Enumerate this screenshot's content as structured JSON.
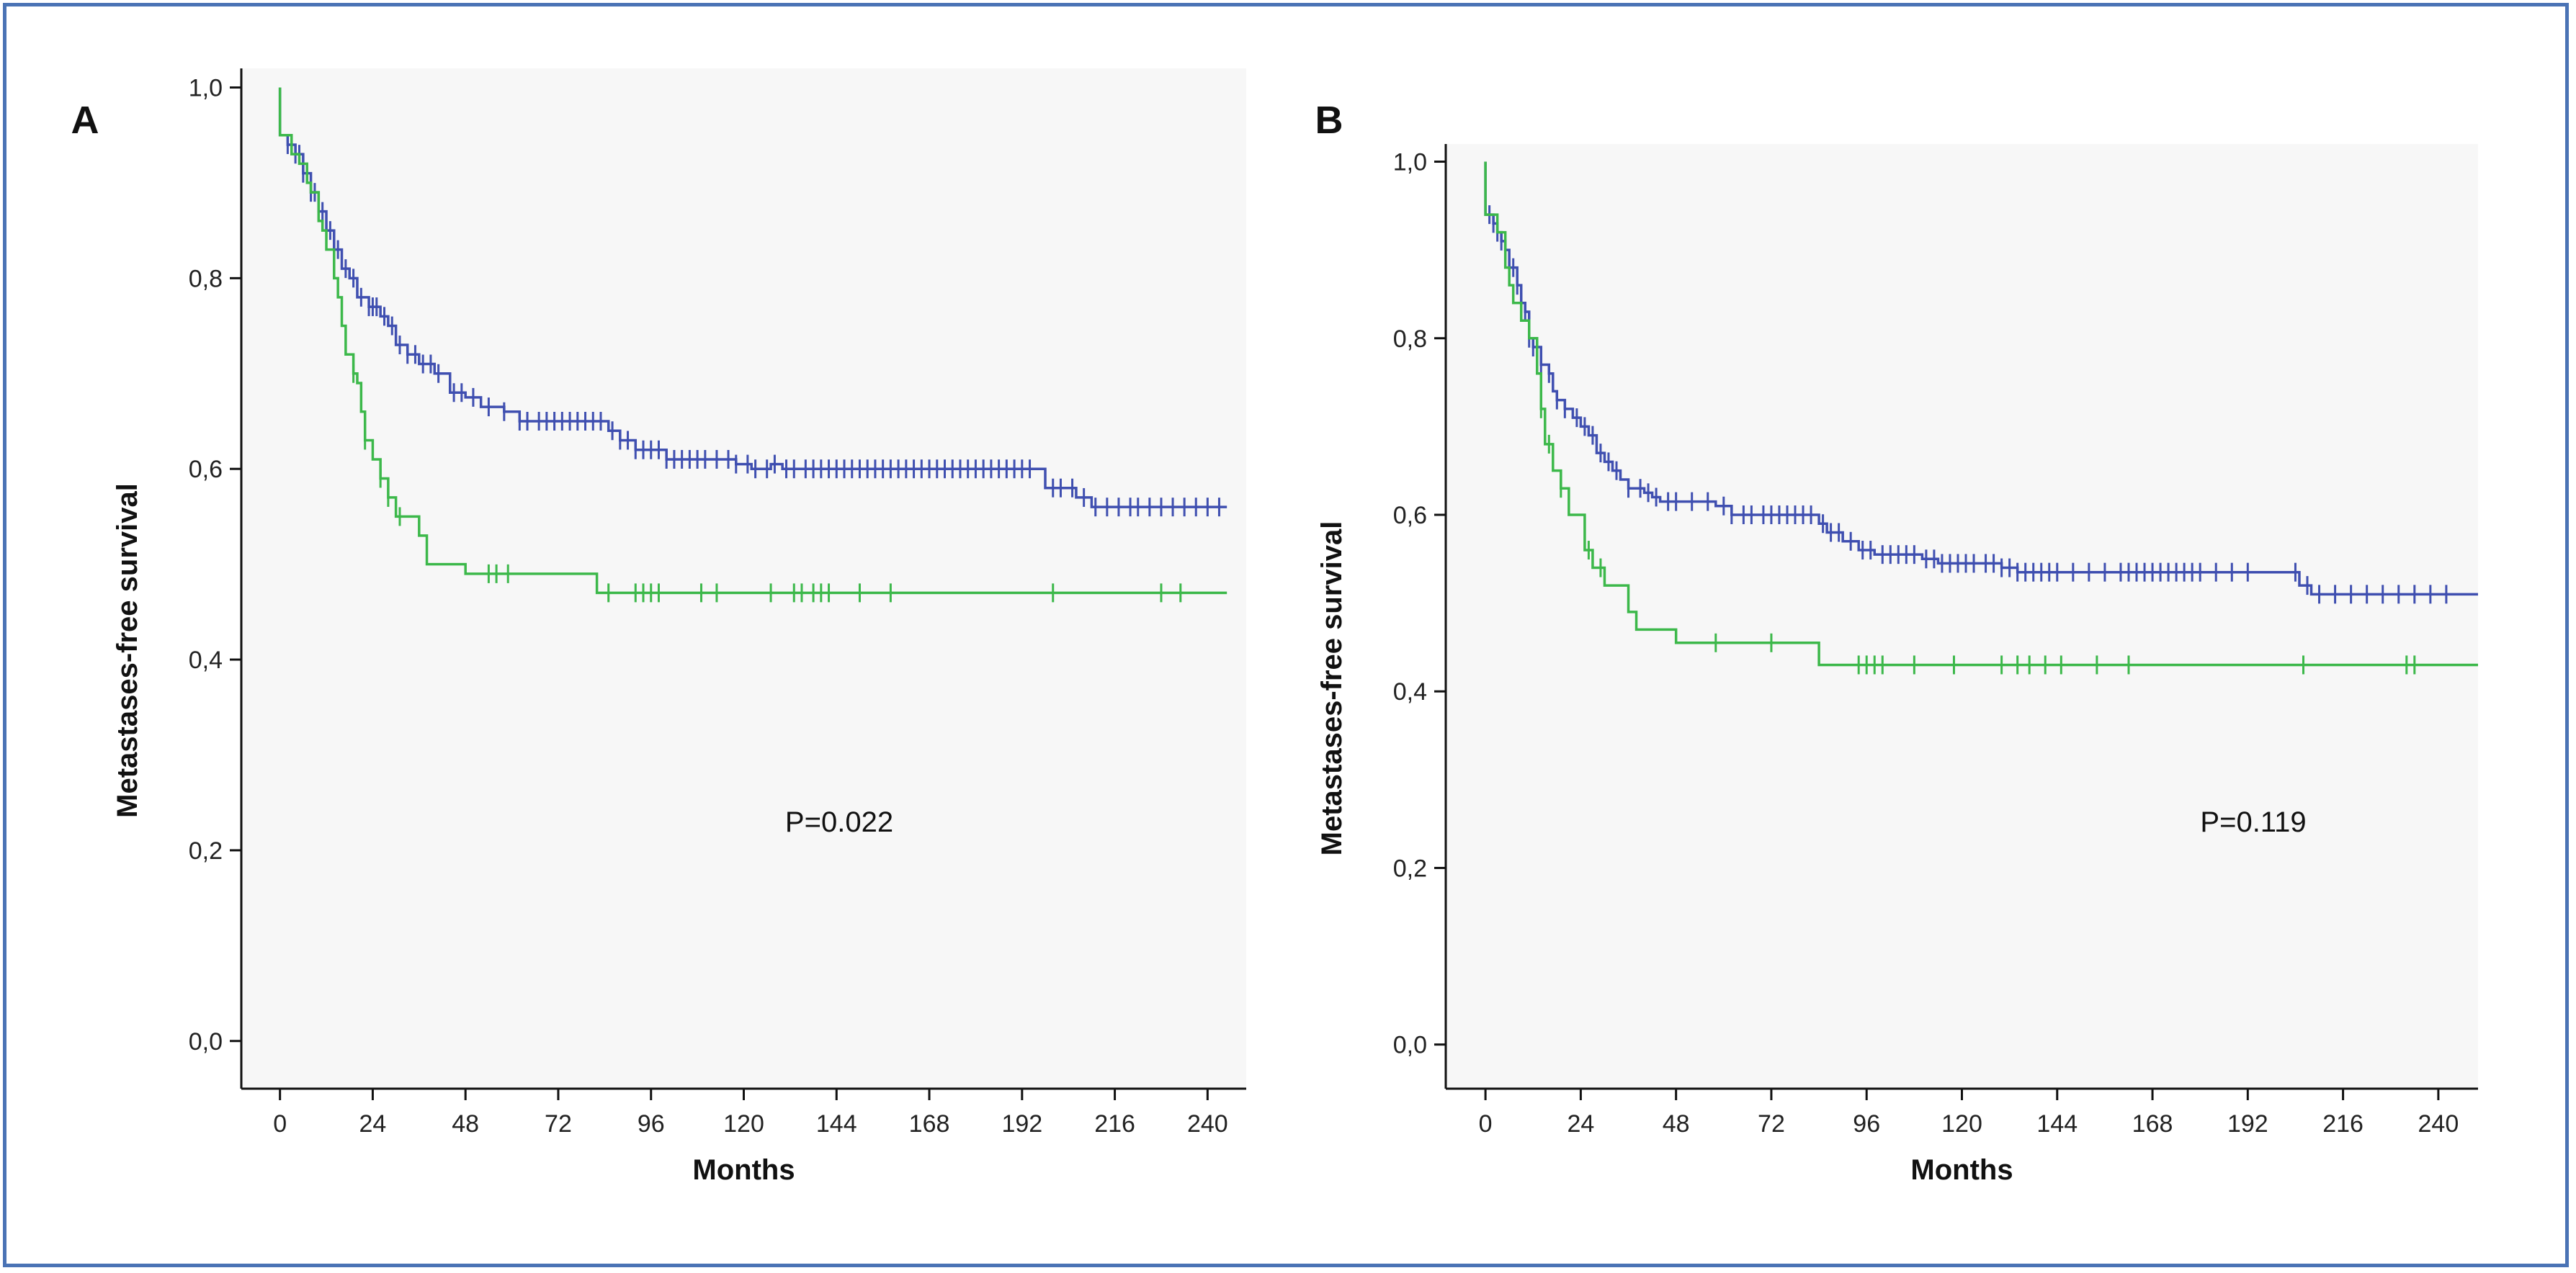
{
  "chart_data": [
    {
      "type": "line",
      "panel_label": "A",
      "xlabel": "Months",
      "ylabel": "Metastases-free survival",
      "xlim": [
        -10,
        250
      ],
      "ylim": [
        -0.05,
        1.02
      ],
      "x_ticks": [
        0,
        24,
        48,
        72,
        96,
        120,
        144,
        168,
        192,
        216,
        240
      ],
      "y_ticks": [
        0.0,
        0.2,
        0.4,
        0.6,
        0.8,
        1.0
      ],
      "y_tick_labels": [
        "0,0",
        "0,2",
        "0,4",
        "0,6",
        "0,8",
        "1,0"
      ],
      "annotation": "P=0.022",
      "series": [
        {
          "name": "blue",
          "color": "#3f4fb0",
          "steps": [
            [
              0,
              1.0
            ],
            [
              0,
              0.95
            ],
            [
              2,
              0.94
            ],
            [
              4,
              0.93
            ],
            [
              6,
              0.91
            ],
            [
              8,
              0.89
            ],
            [
              10,
              0.87
            ],
            [
              12,
              0.85
            ],
            [
              14,
              0.83
            ],
            [
              16,
              0.81
            ],
            [
              18,
              0.8
            ],
            [
              20,
              0.78
            ],
            [
              23,
              0.77
            ],
            [
              26,
              0.76
            ],
            [
              28,
              0.75
            ],
            [
              30,
              0.73
            ],
            [
              33,
              0.72
            ],
            [
              36,
              0.71
            ],
            [
              40,
              0.7
            ],
            [
              44,
              0.68
            ],
            [
              48,
              0.675
            ],
            [
              52,
              0.665
            ],
            [
              58,
              0.66
            ],
            [
              62,
              0.65
            ],
            [
              66,
              0.65
            ],
            [
              80,
              0.65
            ],
            [
              85,
              0.64
            ],
            [
              88,
              0.63
            ],
            [
              92,
              0.62
            ],
            [
              100,
              0.61
            ],
            [
              115,
              0.61
            ],
            [
              118,
              0.605
            ],
            [
              122,
              0.6
            ],
            [
              127,
              0.605
            ],
            [
              130,
              0.6
            ],
            [
              196,
              0.6
            ],
            [
              198,
              0.58
            ],
            [
              206,
              0.57
            ],
            [
              210,
              0.56
            ],
            [
              245,
              0.56
            ]
          ],
          "censor_x": [
            2,
            3,
            4,
            5,
            6,
            7,
            8,
            9,
            10,
            11,
            12,
            13,
            15,
            17,
            19,
            21,
            23,
            24,
            25,
            27,
            29,
            31,
            33,
            35,
            37,
            39,
            41,
            45,
            47,
            50,
            54,
            58,
            62,
            64,
            67,
            69,
            71,
            73,
            75,
            77,
            79,
            81,
            83,
            86,
            88,
            90,
            92,
            94,
            96,
            98,
            100,
            102,
            104,
            106,
            108,
            110,
            113,
            116,
            118,
            121,
            123,
            126,
            128,
            131,
            133,
            136,
            138,
            140,
            142,
            144,
            146,
            148,
            150,
            152,
            154,
            156,
            158,
            160,
            162,
            164,
            166,
            168,
            170,
            172,
            174,
            176,
            178,
            180,
            182,
            184,
            186,
            188,
            190,
            192,
            194,
            200,
            202,
            205,
            208,
            211,
            214,
            217,
            220,
            222,
            225,
            228,
            231,
            234,
            237,
            240,
            243
          ]
        },
        {
          "name": "green",
          "color": "#3cb84a",
          "steps": [
            [
              0,
              1.0
            ],
            [
              0,
              0.95
            ],
            [
              3,
              0.93
            ],
            [
              5,
              0.92
            ],
            [
              7,
              0.9
            ],
            [
              8,
              0.89
            ],
            [
              10,
              0.86
            ],
            [
              11,
              0.85
            ],
            [
              12,
              0.83
            ],
            [
              14,
              0.8
            ],
            [
              15,
              0.78
            ],
            [
              16,
              0.75
            ],
            [
              17,
              0.72
            ],
            [
              19,
              0.7
            ],
            [
              20,
              0.69
            ],
            [
              21,
              0.66
            ],
            [
              22,
              0.63
            ],
            [
              24,
              0.61
            ],
            [
              26,
              0.59
            ],
            [
              28,
              0.57
            ],
            [
              30,
              0.55
            ],
            [
              36,
              0.53
            ],
            [
              38,
              0.5
            ],
            [
              48,
              0.49
            ],
            [
              82,
              0.47
            ],
            [
              245,
              0.47
            ]
          ],
          "censor_x": [
            19,
            22,
            26,
            28,
            31,
            54,
            56,
            59,
            85,
            92,
            94,
            96,
            98,
            109,
            113,
            127,
            133,
            135,
            138,
            140,
            142,
            150,
            158,
            200,
            228,
            233
          ]
        }
      ]
    },
    {
      "type": "line",
      "panel_label": "B",
      "xlabel": "Months",
      "ylabel": "Metastases-free survival",
      "xlim": [
        -10,
        250
      ],
      "ylim": [
        -0.05,
        1.02
      ],
      "x_ticks": [
        0,
        24,
        48,
        72,
        96,
        120,
        144,
        168,
        192,
        216,
        240
      ],
      "y_ticks": [
        0.0,
        0.2,
        0.4,
        0.6,
        0.8,
        1.0
      ],
      "y_tick_labels": [
        "0,0",
        "0,2",
        "0,4",
        "0,6",
        "0,8",
        "1,0"
      ],
      "annotation": "P=0.119",
      "series": [
        {
          "name": "blue",
          "color": "#3f4fb0",
          "steps": [
            [
              0,
              1.0
            ],
            [
              0,
              0.94
            ],
            [
              2,
              0.93
            ],
            [
              3,
              0.92
            ],
            [
              4,
              0.91
            ],
            [
              5,
              0.9
            ],
            [
              6,
              0.88
            ],
            [
              8,
              0.86
            ],
            [
              9,
              0.84
            ],
            [
              10,
              0.83
            ],
            [
              11,
              0.8
            ],
            [
              12,
              0.79
            ],
            [
              14,
              0.77
            ],
            [
              16,
              0.76
            ],
            [
              17,
              0.74
            ],
            [
              18,
              0.73
            ],
            [
              20,
              0.72
            ],
            [
              22,
              0.71
            ],
            [
              24,
              0.7
            ],
            [
              26,
              0.69
            ],
            [
              28,
              0.67
            ],
            [
              30,
              0.66
            ],
            [
              32,
              0.65
            ],
            [
              34,
              0.64
            ],
            [
              36,
              0.63
            ],
            [
              40,
              0.625
            ],
            [
              42,
              0.62
            ],
            [
              44,
              0.615
            ],
            [
              58,
              0.61
            ],
            [
              62,
              0.6
            ],
            [
              84,
              0.59
            ],
            [
              86,
              0.58
            ],
            [
              90,
              0.57
            ],
            [
              94,
              0.56
            ],
            [
              98,
              0.555
            ],
            [
              110,
              0.55
            ],
            [
              114,
              0.545
            ],
            [
              130,
              0.54
            ],
            [
              134,
              0.535
            ],
            [
              205,
              0.52
            ],
            [
              208,
              0.51
            ],
            [
              250,
              0.51
            ]
          ],
          "censor_x": [
            1,
            2,
            3,
            4,
            5,
            6,
            7,
            8,
            9,
            10,
            11,
            12,
            13,
            14,
            16,
            18,
            20,
            23,
            25,
            27,
            29,
            31,
            33,
            36,
            39,
            41,
            43,
            46,
            48,
            52,
            56,
            60,
            62,
            65,
            67,
            70,
            72,
            74,
            76,
            78,
            80,
            82,
            85,
            87,
            89,
            92,
            95,
            97,
            100,
            102,
            104,
            106,
            108,
            111,
            113,
            115,
            117,
            119,
            121,
            123,
            126,
            128,
            130,
            132,
            134,
            136,
            138,
            140,
            142,
            144,
            148,
            152,
            156,
            160,
            162,
            164,
            166,
            168,
            170,
            172,
            174,
            176,
            178,
            180,
            184,
            188,
            192,
            204,
            207,
            210,
            214,
            218,
            222,
            226,
            230,
            234,
            238,
            242
          ]
        },
        {
          "name": "green",
          "color": "#3cb84a",
          "steps": [
            [
              0,
              1.0
            ],
            [
              0,
              0.94
            ],
            [
              3,
              0.92
            ],
            [
              5,
              0.88
            ],
            [
              6,
              0.86
            ],
            [
              7,
              0.84
            ],
            [
              9,
              0.82
            ],
            [
              11,
              0.8
            ],
            [
              13,
              0.76
            ],
            [
              14,
              0.72
            ],
            [
              15,
              0.68
            ],
            [
              17,
              0.65
            ],
            [
              19,
              0.63
            ],
            [
              21,
              0.6
            ],
            [
              25,
              0.56
            ],
            [
              27,
              0.54
            ],
            [
              30,
              0.52
            ],
            [
              36,
              0.49
            ],
            [
              38,
              0.47
            ],
            [
              48,
              0.455
            ],
            [
              72,
              0.455
            ],
            [
              84,
              0.43
            ],
            [
              250,
              0.43
            ]
          ],
          "censor_x": [
            14,
            16,
            19,
            26,
            29,
            58,
            72,
            94,
            96,
            98,
            100,
            108,
            118,
            130,
            134,
            137,
            141,
            145,
            154,
            162,
            206,
            232,
            234
          ]
        }
      ]
    }
  ]
}
